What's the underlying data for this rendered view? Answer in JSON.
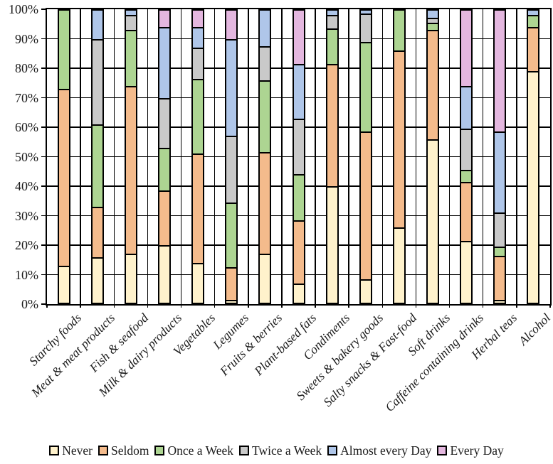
{
  "chart_data": {
    "type": "bar",
    "stacked": true,
    "percent_stacked": true,
    "title": "",
    "xlabel": "",
    "ylabel": "",
    "ylim": [
      0,
      100
    ],
    "grid": true,
    "legend_position": "bottom",
    "y_ticks": [
      "100%",
      "90%",
      "80%",
      "70%",
      "60%",
      "50%",
      "40%",
      "30%",
      "20%",
      "10%",
      "0%"
    ],
    "categories": [
      "Starchy foods",
      "Meat & meat products",
      "Fish & seafood",
      "Milk & dairy products",
      "Vegetables",
      "Legumes",
      "Fruits & berries",
      "Plant-based fats",
      "Condiments",
      "Sweets & bakery goods",
      "Salty snacks & Fast-food",
      "Soft drinks",
      "Caffeine containing drinks",
      "Herbal teas",
      "Alcohol"
    ],
    "series": [
      {
        "name": "Never",
        "color": "#FFF2CC",
        "values": [
          13,
          16,
          17,
          20,
          14,
          1.5,
          17,
          7,
          40,
          8.5,
          26,
          56,
          21.5,
          1.5,
          79
        ]
      },
      {
        "name": "Seldom",
        "color": "#F4BB8C",
        "values": [
          60,
          17,
          57,
          18.5,
          37,
          11,
          34.5,
          21.5,
          41.5,
          50,
          60,
          37,
          20,
          15,
          15
        ]
      },
      {
        "name": "Once a Week",
        "color": "#ADD592",
        "values": [
          27,
          28,
          19,
          14.5,
          25.5,
          22,
          24.5,
          15.5,
          12,
          30.5,
          14,
          2.5,
          4,
          3,
          4
        ]
      },
      {
        "name": "Twice a Week",
        "color": "#C9C9C9",
        "values": [
          0,
          29,
          5,
          17,
          10.5,
          22.5,
          11.5,
          19,
          4.5,
          9.5,
          0,
          1.5,
          14,
          11.5,
          0
        ]
      },
      {
        "name": "Almost every Day",
        "color": "#AFC6E9",
        "values": [
          0,
          10,
          2,
          24,
          7,
          33,
          12.5,
          18.5,
          2,
          1.5,
          0,
          3,
          14.5,
          27.5,
          2
        ]
      },
      {
        "name": "Every Day",
        "color": "#E4B7DF",
        "values": [
          0,
          0,
          0,
          6,
          6,
          10,
          0,
          18.5,
          0,
          0,
          0,
          0,
          26,
          41.5,
          0
        ]
      }
    ]
  }
}
